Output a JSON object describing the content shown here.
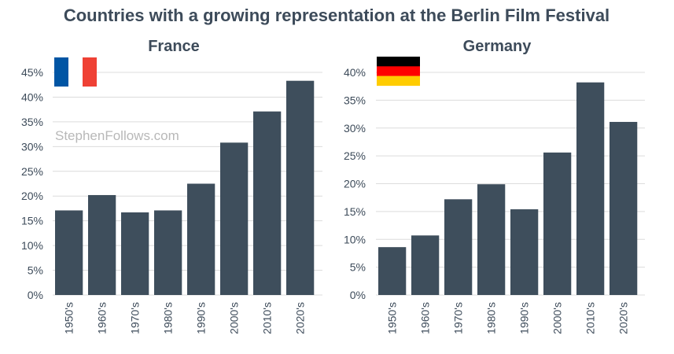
{
  "title": "Countries with a growing representation at the Berlin Film Festival",
  "watermark": "StephenFollows.com",
  "colors": {
    "bar": "#3e4e5c",
    "text": "#3d4b5a",
    "grid": "#dcdcdc"
  },
  "chart_data": [
    {
      "type": "bar",
      "title": "France",
      "flag": [
        "#0055a4",
        "#ffffff",
        "#ef4135"
      ],
      "categories": [
        "1950's",
        "1960's",
        "1970's",
        "1980's",
        "1990's",
        "2000's",
        "2010's",
        "2020's"
      ],
      "values": [
        17.1,
        20.2,
        16.7,
        17.1,
        22.5,
        30.8,
        37.1,
        43.3
      ],
      "yticks": [
        "0%",
        "5%",
        "10%",
        "15%",
        "20%",
        "25%",
        "30%",
        "35%",
        "40%",
        "45%"
      ],
      "ylim": [
        0,
        45
      ],
      "xlabel": "",
      "ylabel": "",
      "grid": true
    },
    {
      "type": "bar",
      "title": "Germany",
      "flag": [
        "#000000",
        "#ff0000",
        "#ffcc00"
      ],
      "categories": [
        "1950's",
        "1960's",
        "1970's",
        "1980's",
        "1990's",
        "2000's",
        "2010's",
        "2020's"
      ],
      "values": [
        8.6,
        10.7,
        17.2,
        19.9,
        15.4,
        25.6,
        38.2,
        31.1
      ],
      "yticks": [
        "0%",
        "5%",
        "10%",
        "15%",
        "20%",
        "25%",
        "30%",
        "35%",
        "40%"
      ],
      "ylim": [
        0,
        40
      ],
      "xlabel": "",
      "ylabel": "",
      "grid": true
    }
  ]
}
